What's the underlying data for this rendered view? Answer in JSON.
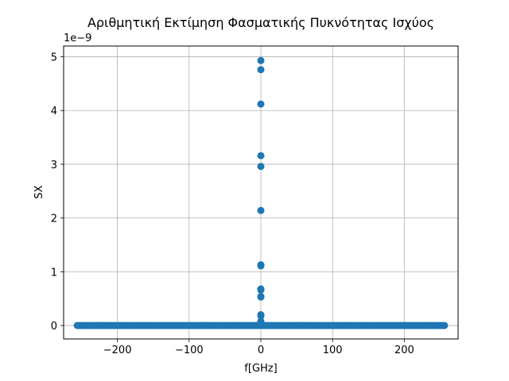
{
  "chart_data": {
    "type": "scatter",
    "title": "Αριθμητική Εκτίμηση Φασματικής Πυκνότητας Ισχύος",
    "xlabel": "f[GHz]",
    "ylabel": "SX",
    "y_offset_label": "1e−9",
    "xlim": [
      -275,
      275
    ],
    "ylim": [
      -0.25,
      5.2
    ],
    "x_ticks": [
      -200,
      -100,
      0,
      100,
      200
    ],
    "x_tick_labels": [
      "−200",
      "−100",
      "0",
      "100",
      "200"
    ],
    "y_ticks": [
      0,
      1,
      2,
      3,
      4,
      5
    ],
    "y_tick_labels": [
      "0",
      "1",
      "2",
      "3",
      "4",
      "5"
    ],
    "grid": true,
    "marker_color": "#1f77b4",
    "baseline": {
      "description_values": "dense points at SX = 0 spanning f from -256 to 256 GHz",
      "x_min": -256,
      "x_max": 256,
      "y": 0
    },
    "points": [
      {
        "x": 0,
        "y": 4.93
      },
      {
        "x": 0,
        "y": 4.76
      },
      {
        "x": 0,
        "y": 4.12
      },
      {
        "x": 0,
        "y": 3.16
      },
      {
        "x": 0,
        "y": 2.96
      },
      {
        "x": 0,
        "y": 2.14
      },
      {
        "x": 0,
        "y": 1.13
      },
      {
        "x": 0,
        "y": 1.11
      },
      {
        "x": 0,
        "y": 0.68
      },
      {
        "x": 0,
        "y": 0.66
      },
      {
        "x": 0,
        "y": 0.54
      },
      {
        "x": 0,
        "y": 0.53
      },
      {
        "x": 0,
        "y": 0.2
      },
      {
        "x": 0,
        "y": 0.18
      },
      {
        "x": 0,
        "y": 0.08
      },
      {
        "x": 0,
        "y": 0.04
      }
    ]
  }
}
